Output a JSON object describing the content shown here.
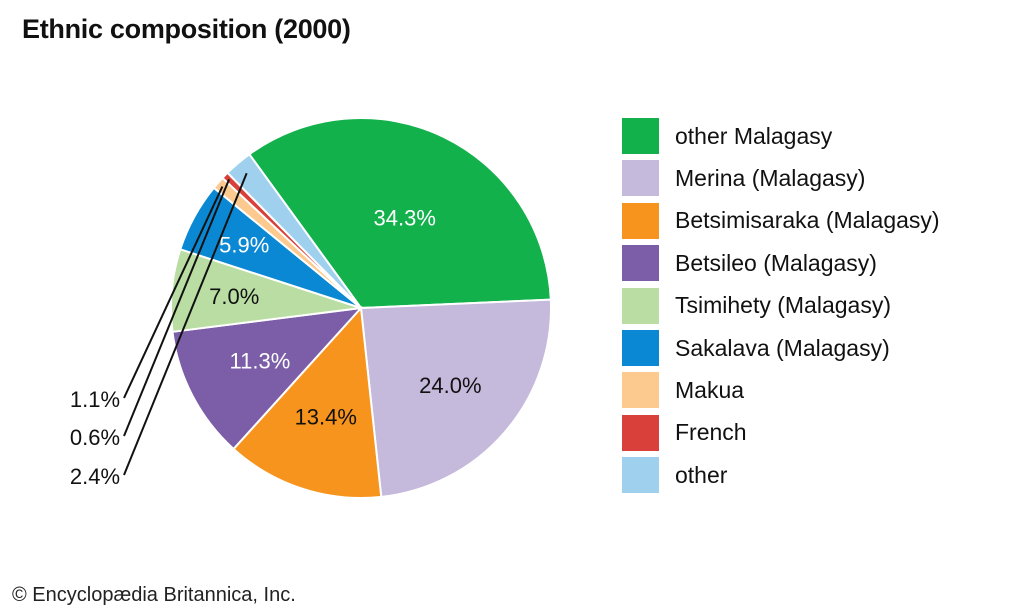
{
  "title": "Ethnic composition (2000)",
  "credit": "© Encyclopædia Britannica, Inc.",
  "chart_data": {
    "type": "pie",
    "title": "Ethnic composition (2000)",
    "slices": [
      {
        "label": "other Malagasy",
        "value": 34.3,
        "display": "34.3%",
        "color": "#12b14b"
      },
      {
        "label": "Merina (Malagasy)",
        "value": 24.0,
        "display": "24.0%",
        "color": "#c5b9dc"
      },
      {
        "label": "Betsimisaraka (Malagasy)",
        "value": 13.4,
        "display": "13.4%",
        "color": "#f7941d"
      },
      {
        "label": "Betsileo (Malagasy)",
        "value": 11.3,
        "display": "11.3%",
        "color": "#7b5ea7"
      },
      {
        "label": "Tsimihety (Malagasy)",
        "value": 7.0,
        "display": "7.0%",
        "color": "#b9dda3"
      },
      {
        "label": "Sakalava (Malagasy)",
        "value": 5.9,
        "display": "5.9%",
        "color": "#0a88d3"
      },
      {
        "label": "Makua",
        "value": 1.1,
        "display": "1.1%",
        "color": "#fcc98f"
      },
      {
        "label": "French",
        "value": 0.6,
        "display": "0.6%",
        "color": "#d9403a"
      },
      {
        "label": "other",
        "value": 2.4,
        "display": "2.4%",
        "color": "#9fd1ef"
      }
    ],
    "legend_position": "right"
  }
}
